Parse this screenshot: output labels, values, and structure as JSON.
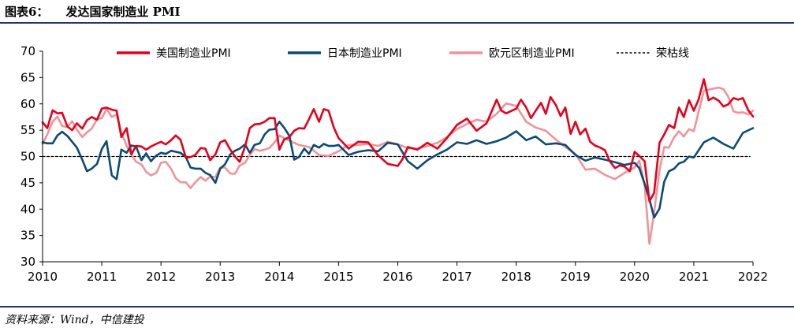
{
  "figure": {
    "label": "图表6：",
    "title": "发达国家制造业 PMI",
    "source": "资料来源：Wind，中信建投"
  },
  "chart_data": {
    "type": "line",
    "title": "发达国家制造业 PMI",
    "xlabel": "",
    "ylabel": "",
    "xlim": [
      2010,
      2022
    ],
    "ylim": [
      30,
      70
    ],
    "xticks": [
      2010,
      2011,
      2012,
      2013,
      2014,
      2015,
      2016,
      2017,
      2018,
      2019,
      2020,
      2021,
      2022
    ],
    "x_tick_labels": [
      "2010",
      "2011",
      "2012",
      "2013",
      "2014",
      "2015",
      "2016",
      "2017",
      "2018",
      "2019",
      "2020",
      "2021",
      "2022"
    ],
    "yticks": [
      30,
      35,
      40,
      45,
      50,
      55,
      60,
      65,
      70
    ],
    "y_tick_labels": [
      "30",
      "35",
      "40",
      "45",
      "50",
      "55",
      "60",
      "65",
      "70"
    ],
    "grid": false,
    "legend_position": "top",
    "series": [
      {
        "name": "美国制造业PMI",
        "color": "#e3001b",
        "dash": "solid",
        "x": [
          2010.0,
          2010.08,
          2010.17,
          2010.25,
          2010.33,
          2010.42,
          2010.5,
          2010.58,
          2010.67,
          2010.75,
          2010.83,
          2010.92,
          2011.0,
          2011.08,
          2011.17,
          2011.25,
          2011.33,
          2011.42,
          2011.5,
          2011.58,
          2011.67,
          2011.75,
          2011.83,
          2011.92,
          2012.0,
          2012.08,
          2012.17,
          2012.25,
          2012.33,
          2012.42,
          2012.5,
          2012.58,
          2012.67,
          2012.75,
          2012.83,
          2012.92,
          2013.0,
          2013.08,
          2013.17,
          2013.25,
          2013.33,
          2013.42,
          2013.5,
          2013.58,
          2013.67,
          2013.75,
          2013.83,
          2013.92,
          2014.0,
          2014.08,
          2014.17,
          2014.25,
          2014.33,
          2014.42,
          2014.5,
          2014.58,
          2014.67,
          2014.75,
          2014.83,
          2014.92,
          2015.0,
          2015.17,
          2015.33,
          2015.5,
          2015.67,
          2015.83,
          2016.0,
          2016.08,
          2016.17,
          2016.33,
          2016.5,
          2016.67,
          2016.83,
          2017.0,
          2017.17,
          2017.33,
          2017.5,
          2017.67,
          2017.75,
          2017.83,
          2018.0,
          2018.08,
          2018.17,
          2018.25,
          2018.33,
          2018.42,
          2018.5,
          2018.58,
          2018.67,
          2018.75,
          2018.83,
          2018.92,
          2019.0,
          2019.08,
          2019.17,
          2019.25,
          2019.33,
          2019.42,
          2019.5,
          2019.58,
          2019.67,
          2019.75,
          2019.83,
          2019.92,
          2020.0,
          2020.08,
          2020.17,
          2020.25,
          2020.33,
          2020.42,
          2020.5,
          2020.58,
          2020.67,
          2020.75,
          2020.83,
          2020.92,
          2021.0,
          2021.08,
          2021.17,
          2021.25,
          2021.33,
          2021.42,
          2021.5,
          2021.58,
          2021.67,
          2021.75,
          2021.83,
          2021.92,
          2022.0
        ],
        "values": [
          56.5,
          55.4,
          58.8,
          58.2,
          58.3,
          55.7,
          55.0,
          56.3,
          55.3,
          56.9,
          57.5,
          57.0,
          59.1,
          59.3,
          58.9,
          58.7,
          53.7,
          55.4,
          50.4,
          52.0,
          51.9,
          51.3,
          51.9,
          52.4,
          52.8,
          52.3,
          53.1,
          54.0,
          53.2,
          49.8,
          49.9,
          50.3,
          51.6,
          51.5,
          49.3,
          50.4,
          52.7,
          53.1,
          51.3,
          50.0,
          49.0,
          51.9,
          55.4,
          56.1,
          56.2,
          56.6,
          57.3,
          57.3,
          51.3,
          53.2,
          53.7,
          54.9,
          55.4,
          55.3,
          57.1,
          59.0,
          56.6,
          59.0,
          58.7,
          55.5,
          53.5,
          51.5,
          52.8,
          52.7,
          50.2,
          48.6,
          48.2,
          49.5,
          51.8,
          51.3,
          52.6,
          51.5,
          53.5,
          56.0,
          57.2,
          54.9,
          56.3,
          60.8,
          58.7,
          58.2,
          59.1,
          60.8,
          59.3,
          57.3,
          58.7,
          60.2,
          58.1,
          61.3,
          59.8,
          57.7,
          59.3,
          54.3,
          56.6,
          54.2,
          55.3,
          52.8,
          52.1,
          51.7,
          51.2,
          49.1,
          47.8,
          48.3,
          48.1,
          47.2,
          50.9,
          50.1,
          49.1,
          41.5,
          43.1,
          52.6,
          54.2,
          56.0,
          55.4,
          59.3,
          57.5,
          60.7,
          58.7,
          60.8,
          64.7,
          60.7,
          61.2,
          60.6,
          59.5,
          59.9,
          61.1,
          60.8,
          61.1,
          58.8,
          57.6
        ]
      },
      {
        "name": "日本制造业PMI",
        "color": "#0b4a76",
        "dash": "solid",
        "x": [
          2010.0,
          2010.08,
          2010.17,
          2010.25,
          2010.33,
          2010.42,
          2010.5,
          2010.58,
          2010.67,
          2010.75,
          2010.83,
          2010.92,
          2011.0,
          2011.08,
          2011.17,
          2011.25,
          2011.33,
          2011.42,
          2011.5,
          2011.58,
          2011.67,
          2011.75,
          2011.83,
          2011.92,
          2012.0,
          2012.08,
          2012.17,
          2012.25,
          2012.33,
          2012.42,
          2012.5,
          2012.58,
          2012.67,
          2012.75,
          2012.83,
          2012.92,
          2013.0,
          2013.08,
          2013.17,
          2013.25,
          2013.33,
          2013.42,
          2013.5,
          2013.58,
          2013.67,
          2013.75,
          2013.83,
          2013.92,
          2014.0,
          2014.08,
          2014.17,
          2014.25,
          2014.33,
          2014.42,
          2014.5,
          2014.58,
          2014.67,
          2014.75,
          2014.83,
          2014.92,
          2015.0,
          2015.17,
          2015.33,
          2015.5,
          2015.67,
          2015.83,
          2016.0,
          2016.17,
          2016.33,
          2016.5,
          2016.67,
          2016.83,
          2017.0,
          2017.17,
          2017.33,
          2017.5,
          2017.67,
          2017.83,
          2018.0,
          2018.17,
          2018.33,
          2018.5,
          2018.67,
          2018.83,
          2019.0,
          2019.17,
          2019.33,
          2019.5,
          2019.67,
          2019.83,
          2020.0,
          2020.08,
          2020.17,
          2020.25,
          2020.33,
          2020.42,
          2020.5,
          2020.58,
          2020.67,
          2020.75,
          2020.83,
          2020.92,
          2021.0,
          2021.17,
          2021.33,
          2021.5,
          2021.67,
          2021.83,
          2022.0
        ],
        "values": [
          52.7,
          52.5,
          52.5,
          54.0,
          54.7,
          53.9,
          52.8,
          51.7,
          49.4,
          47.2,
          47.7,
          48.6,
          51.4,
          52.9,
          46.4,
          45.7,
          51.3,
          50.7,
          52.1,
          51.9,
          49.3,
          50.6,
          49.1,
          50.2,
          50.7,
          50.5,
          51.1,
          50.9,
          50.7,
          49.9,
          47.9,
          47.7,
          47.7,
          46.9,
          46.5,
          45.0,
          47.7,
          48.5,
          50.4,
          51.1,
          51.5,
          52.3,
          50.7,
          52.2,
          52.5,
          54.2,
          55.1,
          55.2,
          56.6,
          55.5,
          53.9,
          49.4,
          49.9,
          51.5,
          50.5,
          52.2,
          51.7,
          52.4,
          52.0,
          52.0,
          52.2,
          50.3,
          50.9,
          51.2,
          51.0,
          52.6,
          52.3,
          49.1,
          47.7,
          49.3,
          50.4,
          51.3,
          52.7,
          52.4,
          53.1,
          52.4,
          52.9,
          53.6,
          54.8,
          53.1,
          53.8,
          52.3,
          52.5,
          52.2,
          50.3,
          49.2,
          49.8,
          49.4,
          48.9,
          48.4,
          48.8,
          47.8,
          44.8,
          41.9,
          38.4,
          40.1,
          45.2,
          47.2,
          47.7,
          48.7,
          49.0,
          50.0,
          49.8,
          52.7,
          53.6,
          52.4,
          51.5,
          54.5,
          55.4
        ]
      },
      {
        "name": "欧元区制造业PMI",
        "color": "#f09399",
        "dash": "solid",
        "x": [
          2010.0,
          2010.08,
          2010.17,
          2010.25,
          2010.33,
          2010.42,
          2010.5,
          2010.58,
          2010.67,
          2010.75,
          2010.83,
          2010.92,
          2011.0,
          2011.08,
          2011.17,
          2011.25,
          2011.33,
          2011.42,
          2011.5,
          2011.58,
          2011.67,
          2011.75,
          2011.83,
          2011.92,
          2012.0,
          2012.08,
          2012.17,
          2012.25,
          2012.33,
          2012.42,
          2012.5,
          2012.58,
          2012.67,
          2012.75,
          2012.83,
          2012.92,
          2013.0,
          2013.08,
          2013.17,
          2013.25,
          2013.33,
          2013.42,
          2013.5,
          2013.58,
          2013.67,
          2013.75,
          2013.83,
          2013.92,
          2014.0,
          2014.17,
          2014.33,
          2014.5,
          2014.67,
          2014.83,
          2015.0,
          2015.17,
          2015.33,
          2015.5,
          2015.67,
          2015.83,
          2016.0,
          2016.17,
          2016.33,
          2016.5,
          2016.67,
          2016.83,
          2017.0,
          2017.17,
          2017.33,
          2017.5,
          2017.67,
          2017.83,
          2018.0,
          2018.17,
          2018.33,
          2018.5,
          2018.67,
          2018.83,
          2019.0,
          2019.17,
          2019.33,
          2019.5,
          2019.67,
          2019.83,
          2020.0,
          2020.08,
          2020.17,
          2020.25,
          2020.33,
          2020.42,
          2020.5,
          2020.58,
          2020.67,
          2020.75,
          2020.83,
          2020.92,
          2021.0,
          2021.17,
          2021.33,
          2021.42,
          2021.5,
          2021.58,
          2021.67,
          2021.75,
          2021.83,
          2021.92,
          2022.0
        ],
        "values": [
          52.4,
          54.2,
          56.6,
          57.6,
          55.8,
          55.6,
          56.7,
          55.1,
          53.7,
          54.6,
          55.3,
          57.1,
          57.3,
          59.0,
          57.5,
          58.0,
          54.6,
          52.0,
          50.4,
          49.0,
          48.5,
          47.1,
          46.4,
          46.9,
          48.8,
          49.0,
          47.7,
          45.9,
          45.1,
          45.1,
          44.0,
          45.1,
          46.1,
          45.4,
          46.2,
          46.1,
          47.9,
          47.9,
          46.8,
          46.7,
          48.3,
          48.8,
          50.3,
          51.4,
          51.1,
          51.3,
          51.6,
          52.7,
          54.0,
          53.0,
          52.2,
          51.8,
          50.3,
          50.1,
          51.0,
          52.2,
          52.2,
          52.4,
          52.0,
          52.8,
          52.3,
          51.6,
          51.5,
          52.0,
          52.6,
          53.7,
          55.2,
          56.2,
          57.0,
          56.6,
          58.1,
          60.1,
          59.6,
          56.6,
          55.5,
          54.9,
          53.2,
          51.8,
          50.5,
          47.5,
          47.7,
          46.5,
          45.7,
          46.9,
          47.9,
          49.2,
          44.5,
          33.4,
          39.4,
          47.4,
          51.8,
          51.7,
          53.7,
          54.8,
          53.8,
          55.2,
          54.8,
          62.5,
          62.9,
          63.1,
          62.8,
          61.4,
          58.6,
          58.3,
          58.4,
          58.0,
          58.7
        ]
      },
      {
        "name": "荣枯线",
        "color": "#000000",
        "dash": "dashed",
        "x": [
          2010.0,
          2021.95
        ],
        "values": [
          50,
          50
        ]
      }
    ]
  }
}
